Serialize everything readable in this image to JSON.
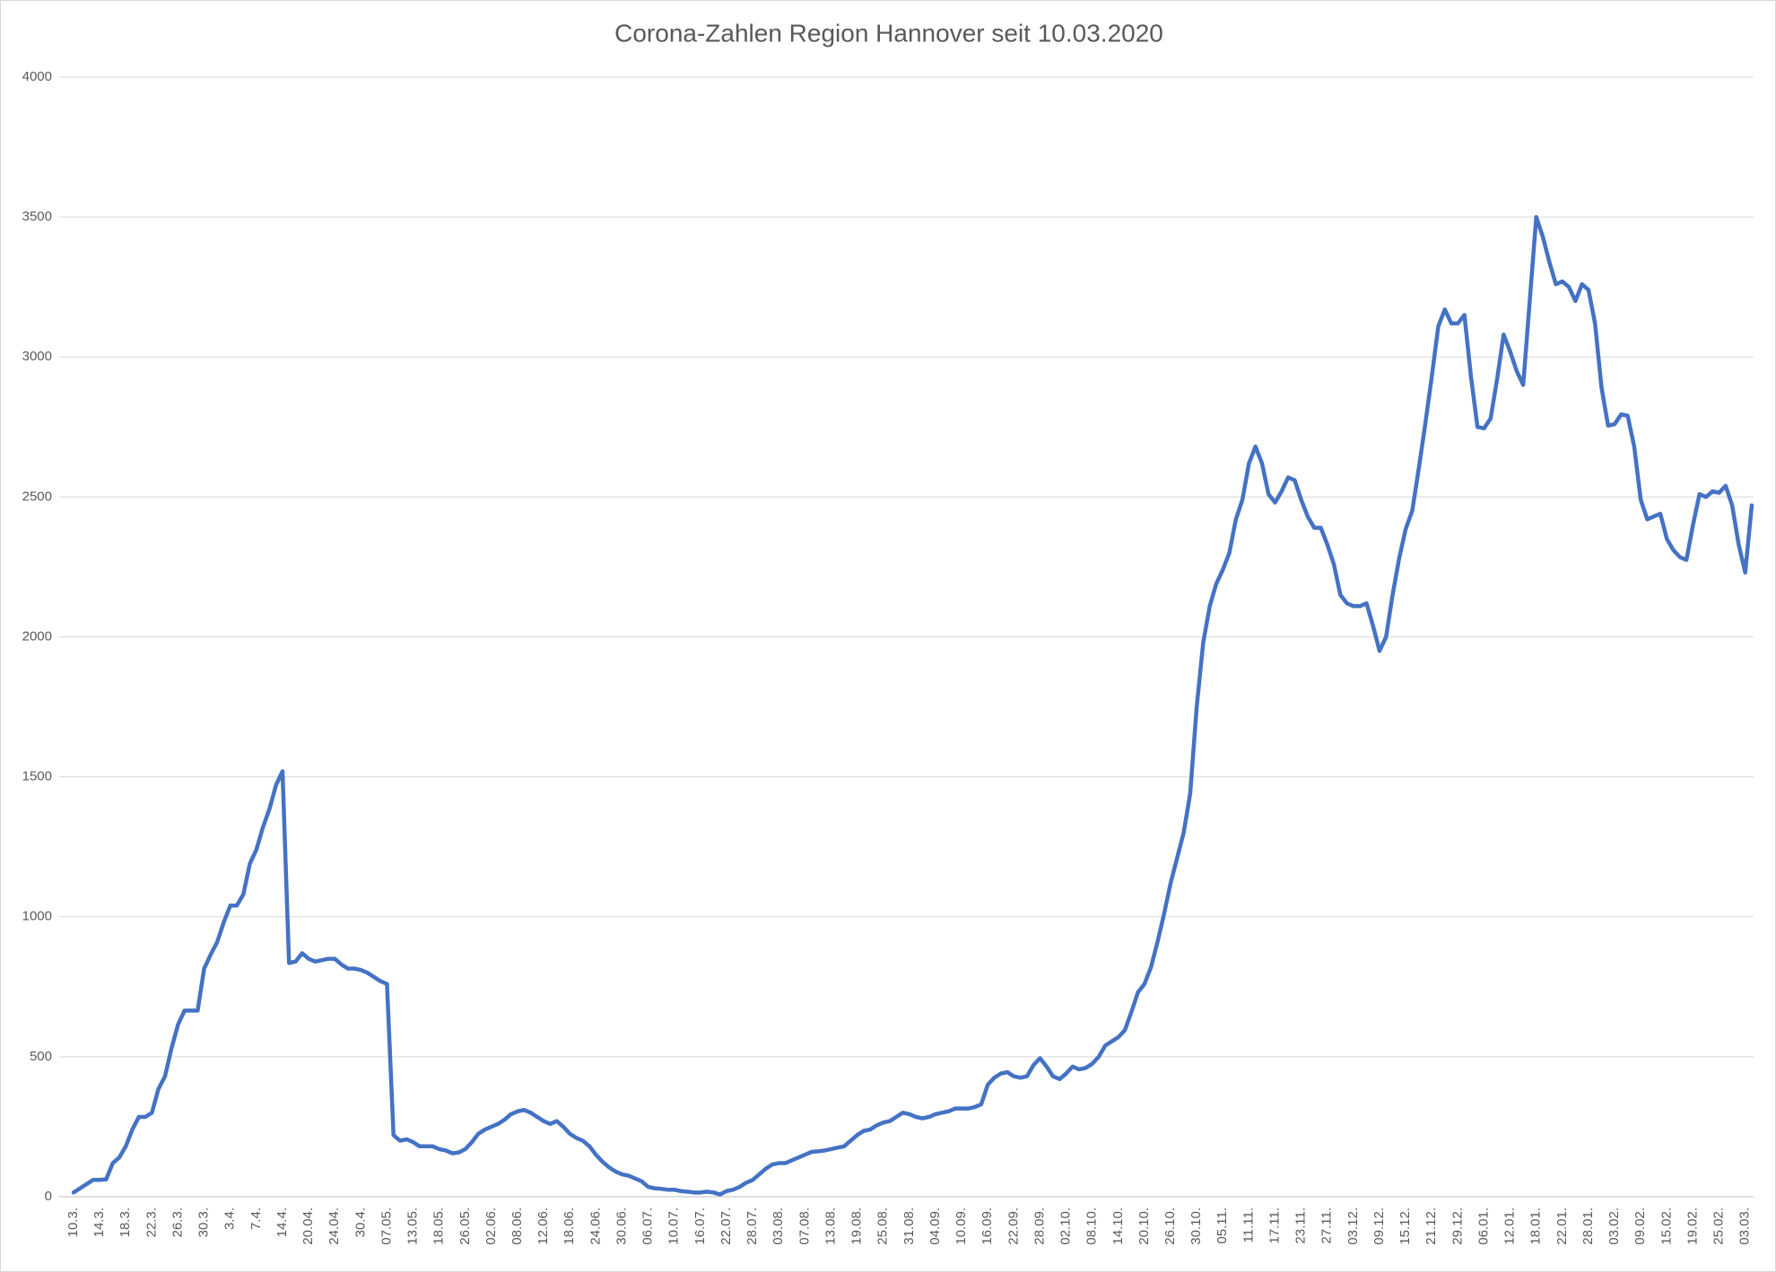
{
  "chart_data": {
    "type": "line",
    "title": "Corona-Zahlen Region Hannover seit 10.03.2020",
    "categories": [
      "10.3.",
      null,
      null,
      null,
      "14.3.",
      null,
      null,
      null,
      "18.3.",
      null,
      null,
      null,
      "22.3.",
      null,
      null,
      null,
      "26.3.",
      null,
      null,
      null,
      "30.3.",
      null,
      null,
      null,
      "3.4.",
      null,
      null,
      null,
      "7.4.",
      null,
      null,
      null,
      "14.4.",
      null,
      null,
      null,
      "20.04.",
      null,
      null,
      null,
      "24.04.",
      null,
      null,
      null,
      "30.4.",
      null,
      null,
      null,
      "07.05.",
      null,
      null,
      null,
      "13.05.",
      null,
      null,
      null,
      "18.05.",
      null,
      null,
      null,
      "26.05.",
      null,
      null,
      null,
      "02.06.",
      null,
      null,
      null,
      "08.06.",
      null,
      null,
      null,
      "12.06.",
      null,
      null,
      null,
      "18.06.",
      null,
      null,
      null,
      "24.06.",
      null,
      null,
      null,
      "30.06.",
      null,
      null,
      null,
      "06.07.",
      null,
      null,
      null,
      "10.07.",
      null,
      null,
      null,
      "16.07.",
      null,
      null,
      null,
      "22.07.",
      null,
      null,
      null,
      "28.07.",
      null,
      null,
      null,
      "03.08.",
      null,
      null,
      null,
      "07.08.",
      null,
      null,
      null,
      "13.08.",
      null,
      null,
      null,
      "19.08.",
      null,
      null,
      null,
      "25.08.",
      null,
      null,
      null,
      "31.08.",
      null,
      null,
      null,
      "04.09.",
      null,
      null,
      null,
      "10.09.",
      null,
      null,
      null,
      "16.09.",
      null,
      null,
      null,
      "22.09.",
      null,
      null,
      null,
      "28.09.",
      null,
      null,
      null,
      "02.10.",
      null,
      null,
      null,
      "08.10.",
      null,
      null,
      null,
      "14.10.",
      null,
      null,
      null,
      "20.10.",
      null,
      null,
      null,
      "26.10.",
      null,
      null,
      null,
      "30.10.",
      null,
      null,
      null,
      "05.11.",
      null,
      null,
      null,
      "11.11.",
      null,
      null,
      null,
      "17.11.",
      null,
      null,
      null,
      "23.11.",
      null,
      null,
      null,
      "27.11.",
      null,
      null,
      null,
      "03.12.",
      null,
      null,
      null,
      "09.12.",
      null,
      null,
      null,
      "15.12.",
      null,
      null,
      null,
      "21.12.",
      null,
      null,
      null,
      "29.12.",
      null,
      null,
      null,
      "06.01.",
      null,
      null,
      null,
      "12.01.",
      null,
      null,
      null,
      "18.01.",
      null,
      null,
      null,
      "22.01.",
      null,
      null,
      null,
      "28.01.",
      null,
      null,
      null,
      "03.02.",
      null,
      null,
      null,
      "09.02.",
      null,
      null,
      null,
      "15.02.",
      null,
      null,
      null,
      "19.02.",
      null,
      null,
      null,
      "25.02.",
      null,
      null,
      null,
      "03.03.",
      null
    ],
    "values": [
      15,
      30,
      45,
      60,
      60,
      62,
      120,
      140,
      180,
      240,
      285,
      285,
      300,
      385,
      430,
      530,
      615,
      665,
      665,
      665,
      815,
      865,
      910,
      980,
      1040,
      1040,
      1080,
      1190,
      1240,
      1320,
      1385,
      1470,
      1520,
      835,
      840,
      870,
      850,
      840,
      845,
      850,
      850,
      830,
      815,
      815,
      810,
      800,
      785,
      770,
      760,
      220,
      200,
      205,
      195,
      180,
      180,
      180,
      170,
      165,
      155,
      158,
      170,
      195,
      225,
      240,
      250,
      260,
      275,
      295,
      305,
      310,
      300,
      285,
      270,
      260,
      270,
      250,
      225,
      210,
      200,
      180,
      150,
      125,
      105,
      90,
      80,
      75,
      65,
      55,
      35,
      30,
      28,
      25,
      25,
      20,
      18,
      15,
      15,
      18,
      15,
      8,
      20,
      25,
      35,
      50,
      60,
      80,
      100,
      115,
      120,
      120,
      130,
      140,
      150,
      160,
      162,
      165,
      170,
      175,
      180,
      200,
      220,
      235,
      240,
      255,
      265,
      270,
      285,
      300,
      295,
      285,
      280,
      285,
      295,
      300,
      305,
      315,
      315,
      315,
      320,
      330,
      400,
      425,
      440,
      445,
      430,
      425,
      430,
      470,
      495,
      465,
      430,
      420,
      440,
      465,
      455,
      460,
      475,
      500,
      540,
      555,
      570,
      595,
      660,
      730,
      760,
      820,
      910,
      1010,
      1120,
      1210,
      1300,
      1440,
      1750,
      1980,
      2110,
      2190,
      2240,
      2300,
      2420,
      2490,
      2620,
      2680,
      2620,
      2510,
      2480,
      2520,
      2570,
      2560,
      2490,
      2430,
      2390,
      2390,
      2330,
      2260,
      2150,
      2120,
      2110,
      2110,
      2120,
      2040,
      1950,
      2000,
      2150,
      2280,
      2385,
      2450,
      2600,
      2760,
      2930,
      3110,
      3170,
      3120,
      3120,
      3150,
      2930,
      2750,
      2745,
      2780,
      2920,
      3080,
      3020,
      2950,
      2900,
      3200,
      3500,
      3430,
      3340,
      3260,
      3270,
      3250,
      3200,
      3260,
      3240,
      3120,
      2890,
      2755,
      2760,
      2795,
      2790,
      2680,
      2490,
      2420,
      2430,
      2440,
      2350,
      2310,
      2285,
      2275,
      2400,
      2510,
      2500,
      2520,
      2515,
      2540,
      2470,
      2330,
      2230,
      2470
    ],
    "color": "#4472c4",
    "ylim": [
      0,
      4000
    ],
    "yticks": [
      0,
      500,
      1000,
      1500,
      2000,
      2500,
      3000,
      3500,
      4000
    ],
    "grid": true
  }
}
